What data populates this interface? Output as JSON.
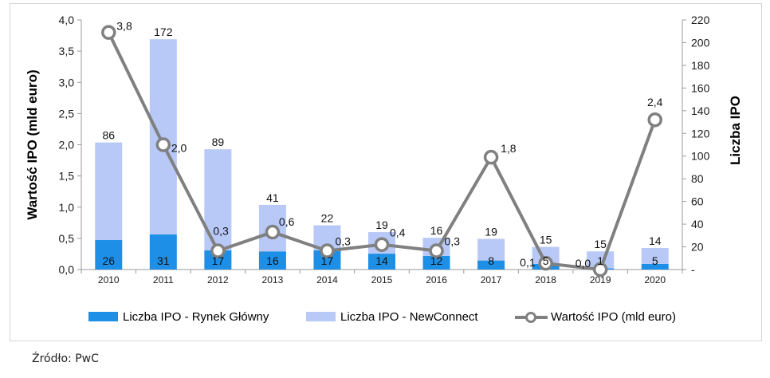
{
  "chart_data": {
    "type": "bar",
    "categories": [
      "2010",
      "2011",
      "2012",
      "2013",
      "2014",
      "2015",
      "2016",
      "2017",
      "2018",
      "2019",
      "2020"
    ],
    "series": [
      {
        "name": "Liczba IPO - Rynek Główny",
        "kind": "bar-stack",
        "axis": "right",
        "values": [
          26,
          31,
          17,
          16,
          17,
          14,
          12,
          8,
          5,
          1,
          5
        ],
        "labels": [
          "26",
          "31",
          "17",
          "16",
          "17",
          "14",
          "12",
          "8",
          "5",
          "1",
          "5"
        ],
        "color": "#1e8fe6"
      },
      {
        "name": "Liczba IPO - NewConnect",
        "kind": "bar-stack",
        "axis": "right",
        "values": [
          86,
          172,
          89,
          41,
          22,
          19,
          16,
          19,
          15,
          15,
          14
        ],
        "labels": [
          "86",
          "172",
          "89",
          "41",
          "22",
          "19",
          "16",
          "19",
          "15",
          "15",
          "14"
        ],
        "color": "#b8c9f7"
      },
      {
        "name": "Wartość IPO (mld euro)",
        "kind": "line",
        "axis": "left",
        "values": [
          3.8,
          2.0,
          0.3,
          0.6,
          0.3,
          0.4,
          0.3,
          1.8,
          0.1,
          0.0,
          2.4
        ],
        "labels": [
          "3,8",
          "2,0",
          "0,3",
          "0,6",
          "0,3",
          "0,4",
          "0,3",
          "1,8",
          "0,1",
          "0,0",
          "2,4"
        ],
        "color": "#808080"
      }
    ],
    "ylabel": "Wartość IPO (mld euro)",
    "y2label": "Liczba IPO",
    "ylim": [
      0,
      4.0
    ],
    "y2lim": [
      0,
      220
    ],
    "yticks": [
      "0,0",
      "0,5",
      "1,0",
      "1,5",
      "2,0",
      "2,5",
      "3,0",
      "3,5",
      "4,0"
    ],
    "y2ticks": [
      "-",
      "20",
      "40",
      "60",
      "80",
      "100",
      "120",
      "140",
      "160",
      "180",
      "200",
      "220"
    ],
    "legend_position": "bottom",
    "grid": false
  },
  "source_note": "Źródło: PwC"
}
